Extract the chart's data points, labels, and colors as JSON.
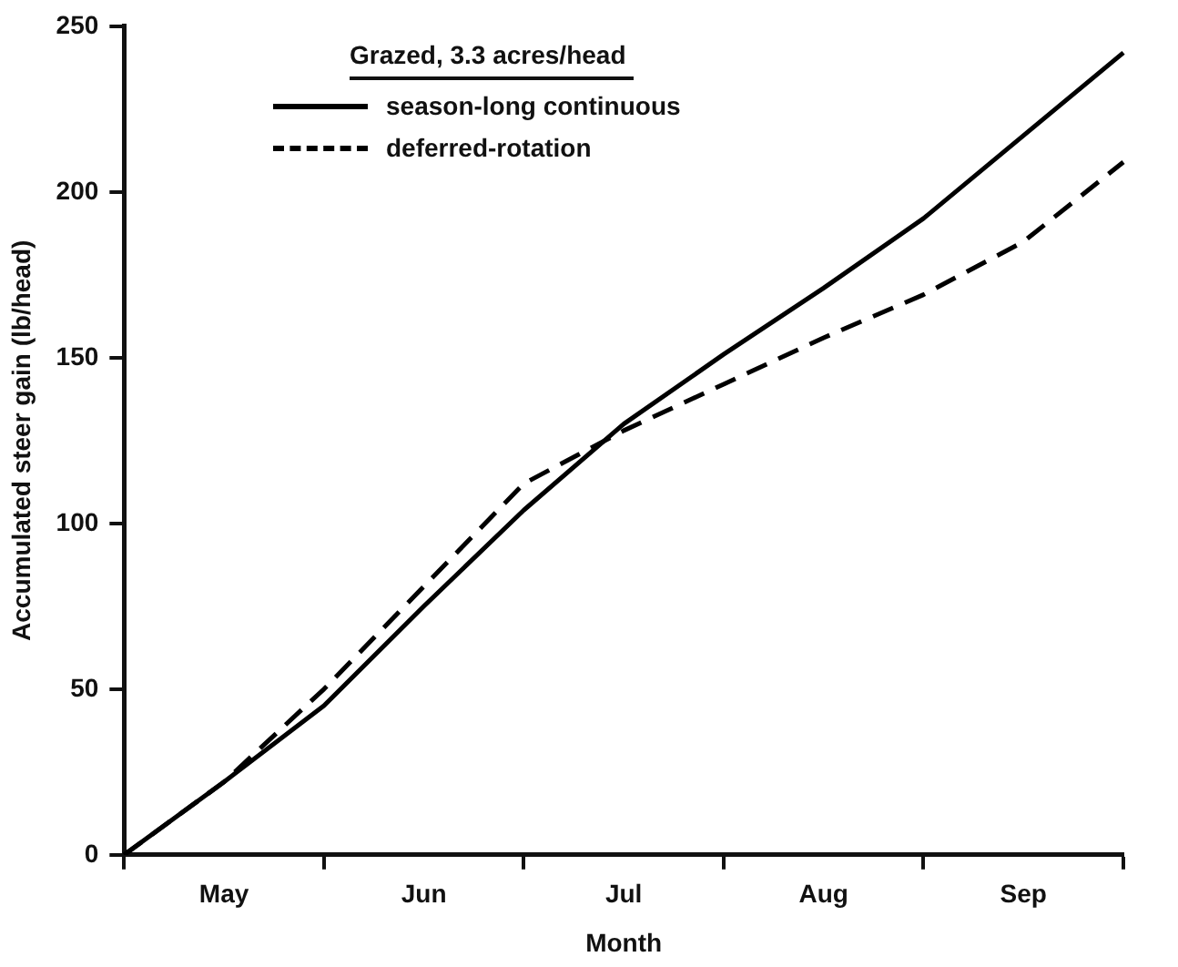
{
  "chart_data": {
    "type": "line",
    "xlabel": "Month",
    "ylabel": "Accumulated steer gain (lb/head)",
    "legend_title": "Grazed, 3.3 acres/head",
    "legend": "top left",
    "grid": false,
    "marker": "none",
    "categories": [
      null,
      "May",
      null,
      "Jun",
      null,
      "Jul",
      null,
      "Aug",
      null,
      "Sep",
      null
    ],
    "ylim": [
      0,
      250
    ],
    "yticks": [
      0,
      50,
      100,
      150,
      200,
      250
    ],
    "series": [
      {
        "name": "season-long continuous",
        "color": "#000000",
        "line_style": "solid",
        "values": [
          0,
          22,
          45,
          75,
          104,
          130,
          151,
          171,
          192,
          217,
          242
        ]
      },
      {
        "name": "deferred-rotation",
        "color": "#000000",
        "line_style": "dashed",
        "values": [
          0,
          22,
          50,
          81,
          112,
          128,
          142,
          156,
          169,
          185,
          209
        ]
      }
    ]
  }
}
